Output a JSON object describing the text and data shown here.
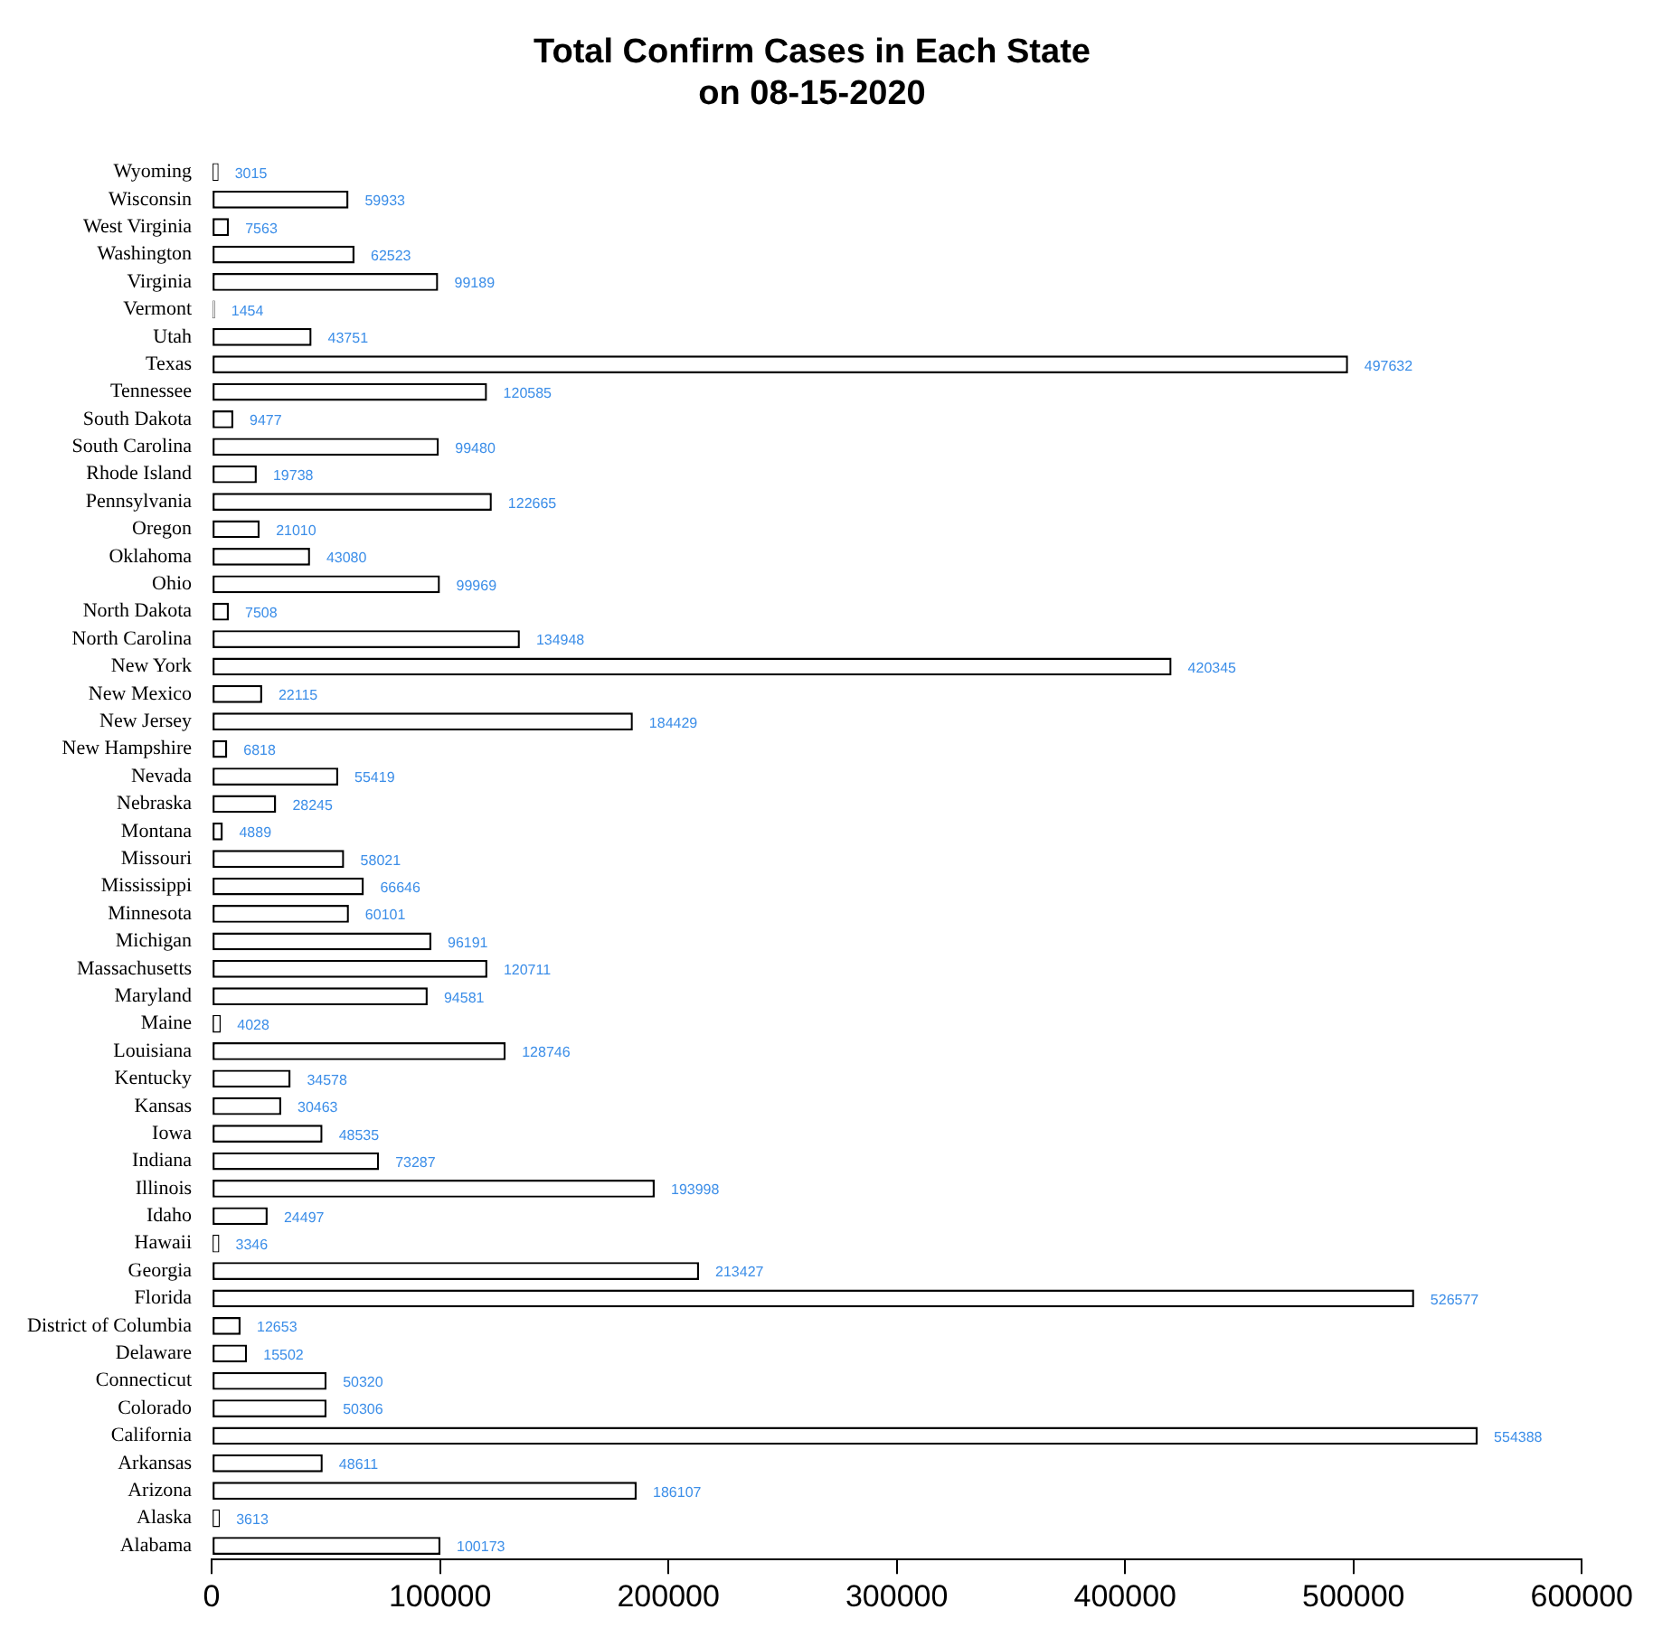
{
  "chart_data": {
    "type": "bar",
    "orientation": "horizontal",
    "title": "Total Confirm Cases in Each State\non 08-15-2020",
    "categories": [
      "Wyoming",
      "Wisconsin",
      "West Virginia",
      "Washington",
      "Virginia",
      "Vermont",
      "Utah",
      "Texas",
      "Tennessee",
      "South Dakota",
      "South Carolina",
      "Rhode Island",
      "Pennsylvania",
      "Oregon",
      "Oklahoma",
      "Ohio",
      "North Dakota",
      "North Carolina",
      "New York",
      "New Mexico",
      "New Jersey",
      "New Hampshire",
      "Nevada",
      "Nebraska",
      "Montana",
      "Missouri",
      "Mississippi",
      "Minnesota",
      "Michigan",
      "Massachusetts",
      "Maryland",
      "Maine",
      "Louisiana",
      "Kentucky",
      "Kansas",
      "Iowa",
      "Indiana",
      "Illinois",
      "Idaho",
      "Hawaii",
      "Georgia",
      "Florida",
      "District of Columbia",
      "Delaware",
      "Connecticut",
      "Colorado",
      "California",
      "Arkansas",
      "Arizona",
      "Alaska",
      "Alabama"
    ],
    "values": [
      3015,
      59933,
      7563,
      62523,
      99189,
      1454,
      43751,
      497632,
      120585,
      9477,
      99480,
      19738,
      122665,
      21010,
      43080,
      99969,
      7508,
      134948,
      420345,
      22115,
      184429,
      6818,
      55419,
      28245,
      4889,
      58021,
      66646,
      60101,
      96191,
      120711,
      94581,
      4028,
      128746,
      34578,
      30463,
      48535,
      73287,
      193998,
      24497,
      3346,
      213427,
      526577,
      12653,
      15502,
      50320,
      50306,
      554388,
      48611,
      186107,
      3613,
      100173
    ],
    "color": "#ffffff",
    "data_labels": true,
    "xlim": [
      0,
      600000
    ],
    "xticks": [
      0,
      100000,
      200000,
      300000,
      400000,
      500000,
      600000
    ]
  }
}
